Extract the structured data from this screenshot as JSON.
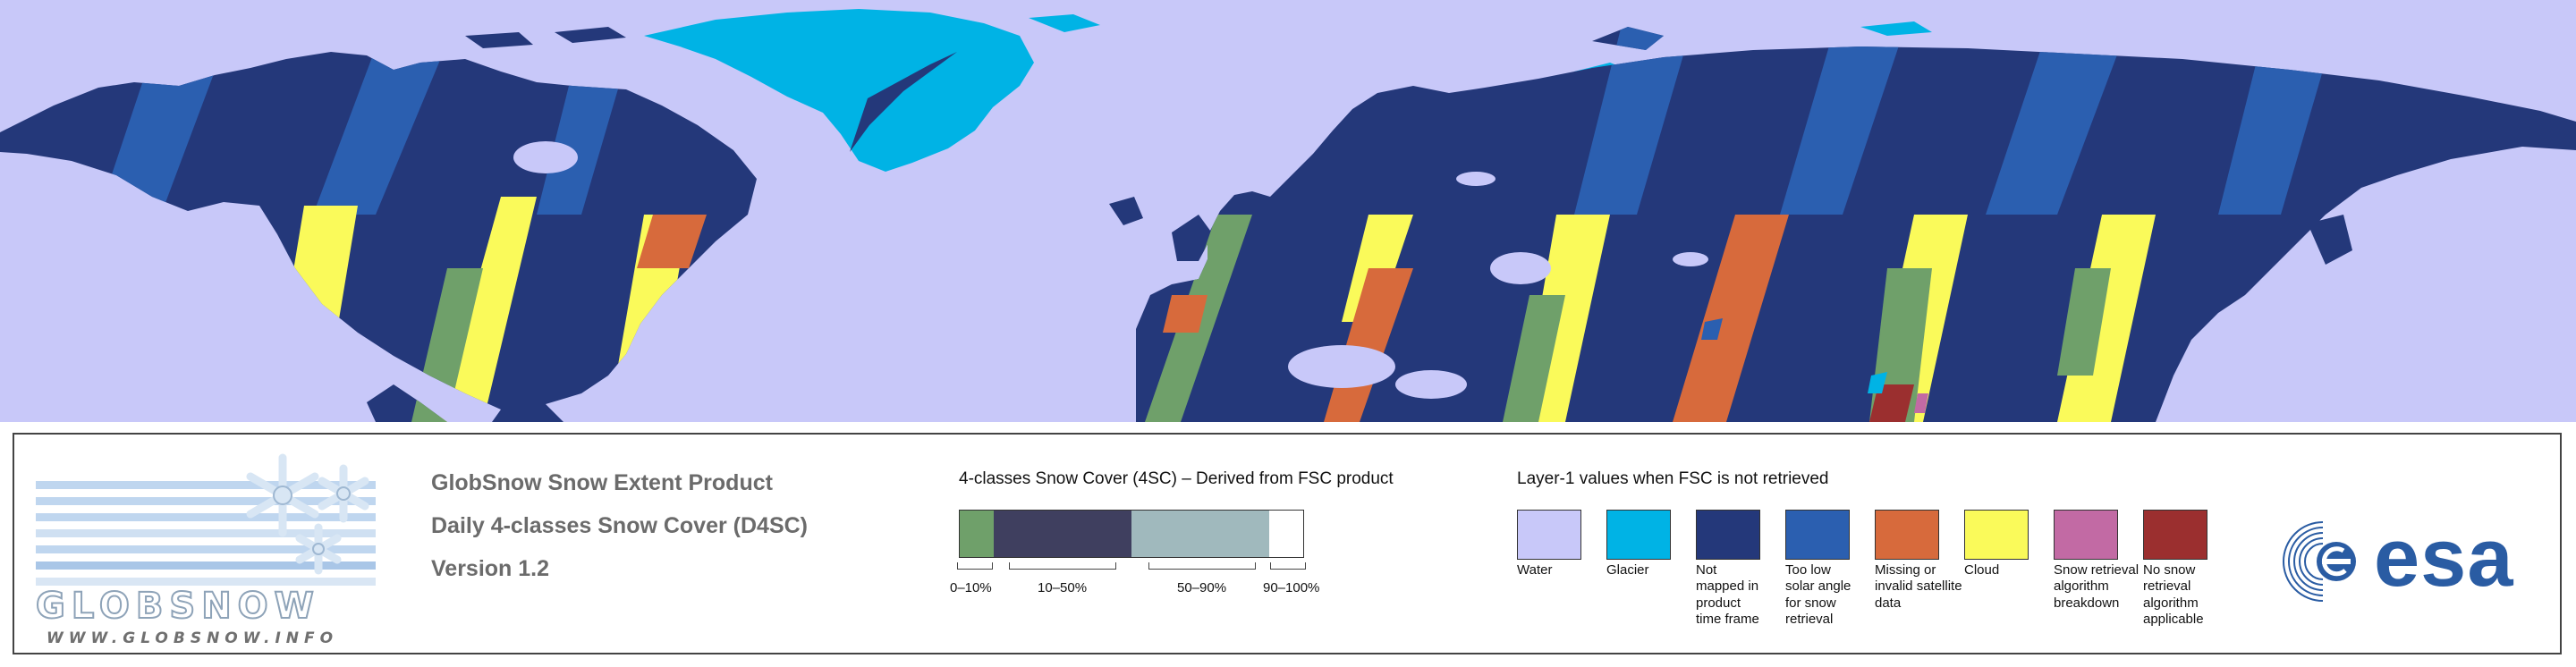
{
  "colors": {
    "water": "#c8c8f9",
    "glacier": "#00b3e5",
    "not_mapped": "#24387a",
    "too_low_solar": "#2b5fb0",
    "missing_invalid": "#d76a3c",
    "cloud": "#fafa5a",
    "snow_retrieval_breakdown": "#c26aa4",
    "no_snow_retrieval": "#9b2f2f",
    "fsc_0_10": "#6fa06a",
    "fsc_10_50": "#3f3f5f",
    "fsc_50_90": "#a0b9bd",
    "fsc_90_100": "#ffffff"
  },
  "logo": {
    "wordmark": "GLOBSNOW",
    "url": "WWW.GLOBSNOW.INFO",
    "icon": "snowflake-icon"
  },
  "product": {
    "title": "GlobSnow Snow Extent Product",
    "subtitle": "Daily 4-classes Snow Cover (D4SC)",
    "version": "Version 1.2"
  },
  "fsc_legend": {
    "heading": "4-classes Snow Cover (4SC) – Derived from FSC product",
    "classes": [
      {
        "label": "0–10%",
        "color": "#6fa06a",
        "weight": 1
      },
      {
        "label": "10–50%",
        "color": "#3f3f5f",
        "weight": 4
      },
      {
        "label": "50–90%",
        "color": "#a0b9bd",
        "weight": 4
      },
      {
        "label": "90–100%",
        "color": "#ffffff",
        "weight": 1
      }
    ]
  },
  "layer1_legend": {
    "heading": "Layer-1 values when FSC is not retrieved",
    "items": [
      {
        "label": "Water",
        "color": "#c8c8f9"
      },
      {
        "label": "Glacier",
        "color": "#00b3e5"
      },
      {
        "label": "Not\nmapped in\nproduct\ntime frame",
        "color": "#24387a"
      },
      {
        "label": "Too low\nsolar angle\nfor snow\nretrieval",
        "color": "#2b5fb0"
      },
      {
        "label": "Missing or\ninvalid satellite\ndata",
        "color": "#d76a3c"
      },
      {
        "label": "Cloud",
        "color": "#fafa5a"
      },
      {
        "label": "Snow retrieval\nalgorithm\nbreakdown",
        "color": "#c26aa4"
      },
      {
        "label": "No snow\nretrieval\nalgorithm\napplicable",
        "color": "#9b2f2f"
      }
    ]
  },
  "esa_logo": {
    "text": "esa",
    "icon": "esa-globe-icon"
  }
}
